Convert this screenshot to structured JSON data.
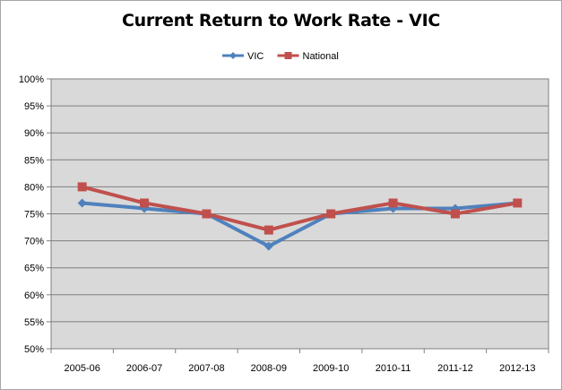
{
  "chart_data": {
    "type": "line",
    "title": "Current Return to Work Rate - VIC",
    "xlabel": "",
    "ylabel": "",
    "categories": [
      "2005-06",
      "2006-07",
      "2007-08",
      "2008-09",
      "2009-10",
      "2010-11",
      "2011-12",
      "2012-13"
    ],
    "series": [
      {
        "name": "VIC",
        "values": [
          77,
          76,
          75,
          69,
          75,
          76,
          76,
          77
        ],
        "color": "#4f81bd",
        "marker": "diamond"
      },
      {
        "name": "National",
        "values": [
          80,
          77,
          75,
          72,
          75,
          77,
          75,
          77
        ],
        "color": "#c0504d",
        "marker": "square"
      }
    ],
    "ylim": [
      50,
      100
    ],
    "yticks": [
      "50%",
      "55%",
      "60%",
      "65%",
      "70%",
      "75%",
      "80%",
      "85%",
      "90%",
      "95%",
      "100%"
    ],
    "grid": true,
    "legend": "top-center",
    "plot_background": "#d9d9d9"
  }
}
